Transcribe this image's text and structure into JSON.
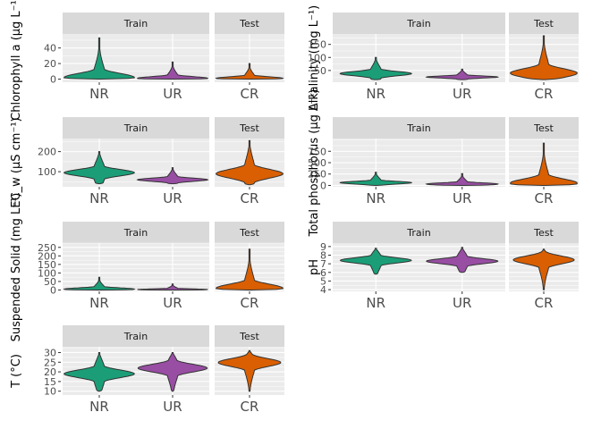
{
  "colors": {
    "NR": "#1b9e77",
    "UR": "#984ea3",
    "CR": "#d95f02",
    "panel_bg": "#ebebeb",
    "strip_bg": "#d9d9d9",
    "grid": "#ffffff",
    "outline": "#333333"
  },
  "chart_data": [
    {
      "type": "violin",
      "ylabel": "Chlorophyll a (μg L⁻¹)",
      "ylim": [
        -4,
        58
      ],
      "yticks": [
        0,
        20,
        40
      ],
      "facets": [
        {
          "label": "Train",
          "groups": [
            {
              "category": "NR",
              "min": 0,
              "max": 53,
              "median": 2
            },
            {
              "category": "UR",
              "min": 0,
              "max": 22,
              "median": 1
            }
          ]
        },
        {
          "label": "Test",
          "groups": [
            {
              "category": "CR",
              "min": 0,
              "max": 20,
              "median": 1
            }
          ]
        }
      ]
    },
    {
      "type": "violin",
      "ylabel": "Alkalinity (mg L⁻¹)",
      "ylim": [
        5,
        190
      ],
      "yticks": [
        50,
        100,
        150
      ],
      "facets": [
        {
          "label": "Train",
          "groups": [
            {
              "category": "NR",
              "min": 15,
              "max": 100,
              "median": 38
            },
            {
              "category": "UR",
              "min": 15,
              "max": 55,
              "median": 25
            }
          ]
        },
        {
          "label": "Test",
          "groups": [
            {
              "category": "CR",
              "min": 15,
              "max": 183,
              "median": 40
            }
          ]
        }
      ]
    },
    {
      "type": "violin",
      "ylabel": "EC_w (μS cm⁻¹)",
      "ylim": [
        25,
        265
      ],
      "yticks": [
        100,
        200
      ],
      "facets": [
        {
          "label": "Train",
          "groups": [
            {
              "category": "NR",
              "min": 40,
              "max": 200,
              "median": 95
            },
            {
              "category": "UR",
              "min": 40,
              "max": 120,
              "median": 60
            }
          ]
        },
        {
          "label": "Test",
          "groups": [
            {
              "category": "CR",
              "min": 35,
              "max": 255,
              "median": 90
            }
          ]
        }
      ]
    },
    {
      "type": "violin",
      "ylabel": "Total phosphorus (μg L⁻¹)",
      "ylim": [
        -30,
        1030
      ],
      "yticks": [
        0,
        250,
        500,
        750
      ],
      "facets": [
        {
          "label": "Train",
          "groups": [
            {
              "category": "NR",
              "min": 0,
              "max": 290,
              "median": 60
            },
            {
              "category": "UR",
              "min": 0,
              "max": 260,
              "median": 30
            }
          ]
        },
        {
          "label": "Test",
          "groups": [
            {
              "category": "CR",
              "min": 0,
              "max": 930,
              "median": 50
            }
          ]
        }
      ]
    },
    {
      "type": "violin",
      "ylabel": "Suspended Solid (mg L⁻¹)",
      "ylim": [
        -8,
        275
      ],
      "yticks": [
        0,
        50,
        100,
        150,
        200,
        250
      ],
      "facets": [
        {
          "label": "Train",
          "groups": [
            {
              "category": "NR",
              "min": 0,
              "max": 75,
              "median": 5
            },
            {
              "category": "UR",
              "min": 0,
              "max": 35,
              "median": 3
            }
          ]
        },
        {
          "label": "Test",
          "groups": [
            {
              "category": "CR",
              "min": 0,
              "max": 240,
              "median": 10
            }
          ]
        }
      ]
    },
    {
      "type": "violin",
      "ylabel": "pH",
      "ylim": [
        3.8,
        9.4
      ],
      "yticks": [
        4,
        5,
        6,
        7,
        8,
        9
      ],
      "facets": [
        {
          "label": "Train",
          "groups": [
            {
              "category": "NR",
              "min": 5.8,
              "max": 8.8,
              "median": 7.4
            },
            {
              "category": "UR",
              "min": 6.0,
              "max": 8.9,
              "median": 7.3
            }
          ]
        },
        {
          "label": "Test",
          "groups": [
            {
              "category": "CR",
              "min": 4.0,
              "max": 8.7,
              "median": 7.5
            }
          ]
        }
      ]
    },
    {
      "type": "violin",
      "ylabel": "T (°C)",
      "ylim": [
        8,
        33
      ],
      "yticks": [
        10,
        15,
        20,
        25,
        30
      ],
      "facets": [
        {
          "label": "Train",
          "groups": [
            {
              "category": "NR",
              "min": 10,
              "max": 30,
              "median": 19
            },
            {
              "category": "UR",
              "min": 10,
              "max": 30,
              "median": 22
            }
          ]
        },
        {
          "label": "Test",
          "groups": [
            {
              "category": "CR",
              "min": 10,
              "max": 31,
              "median": 25
            }
          ]
        }
      ]
    }
  ]
}
